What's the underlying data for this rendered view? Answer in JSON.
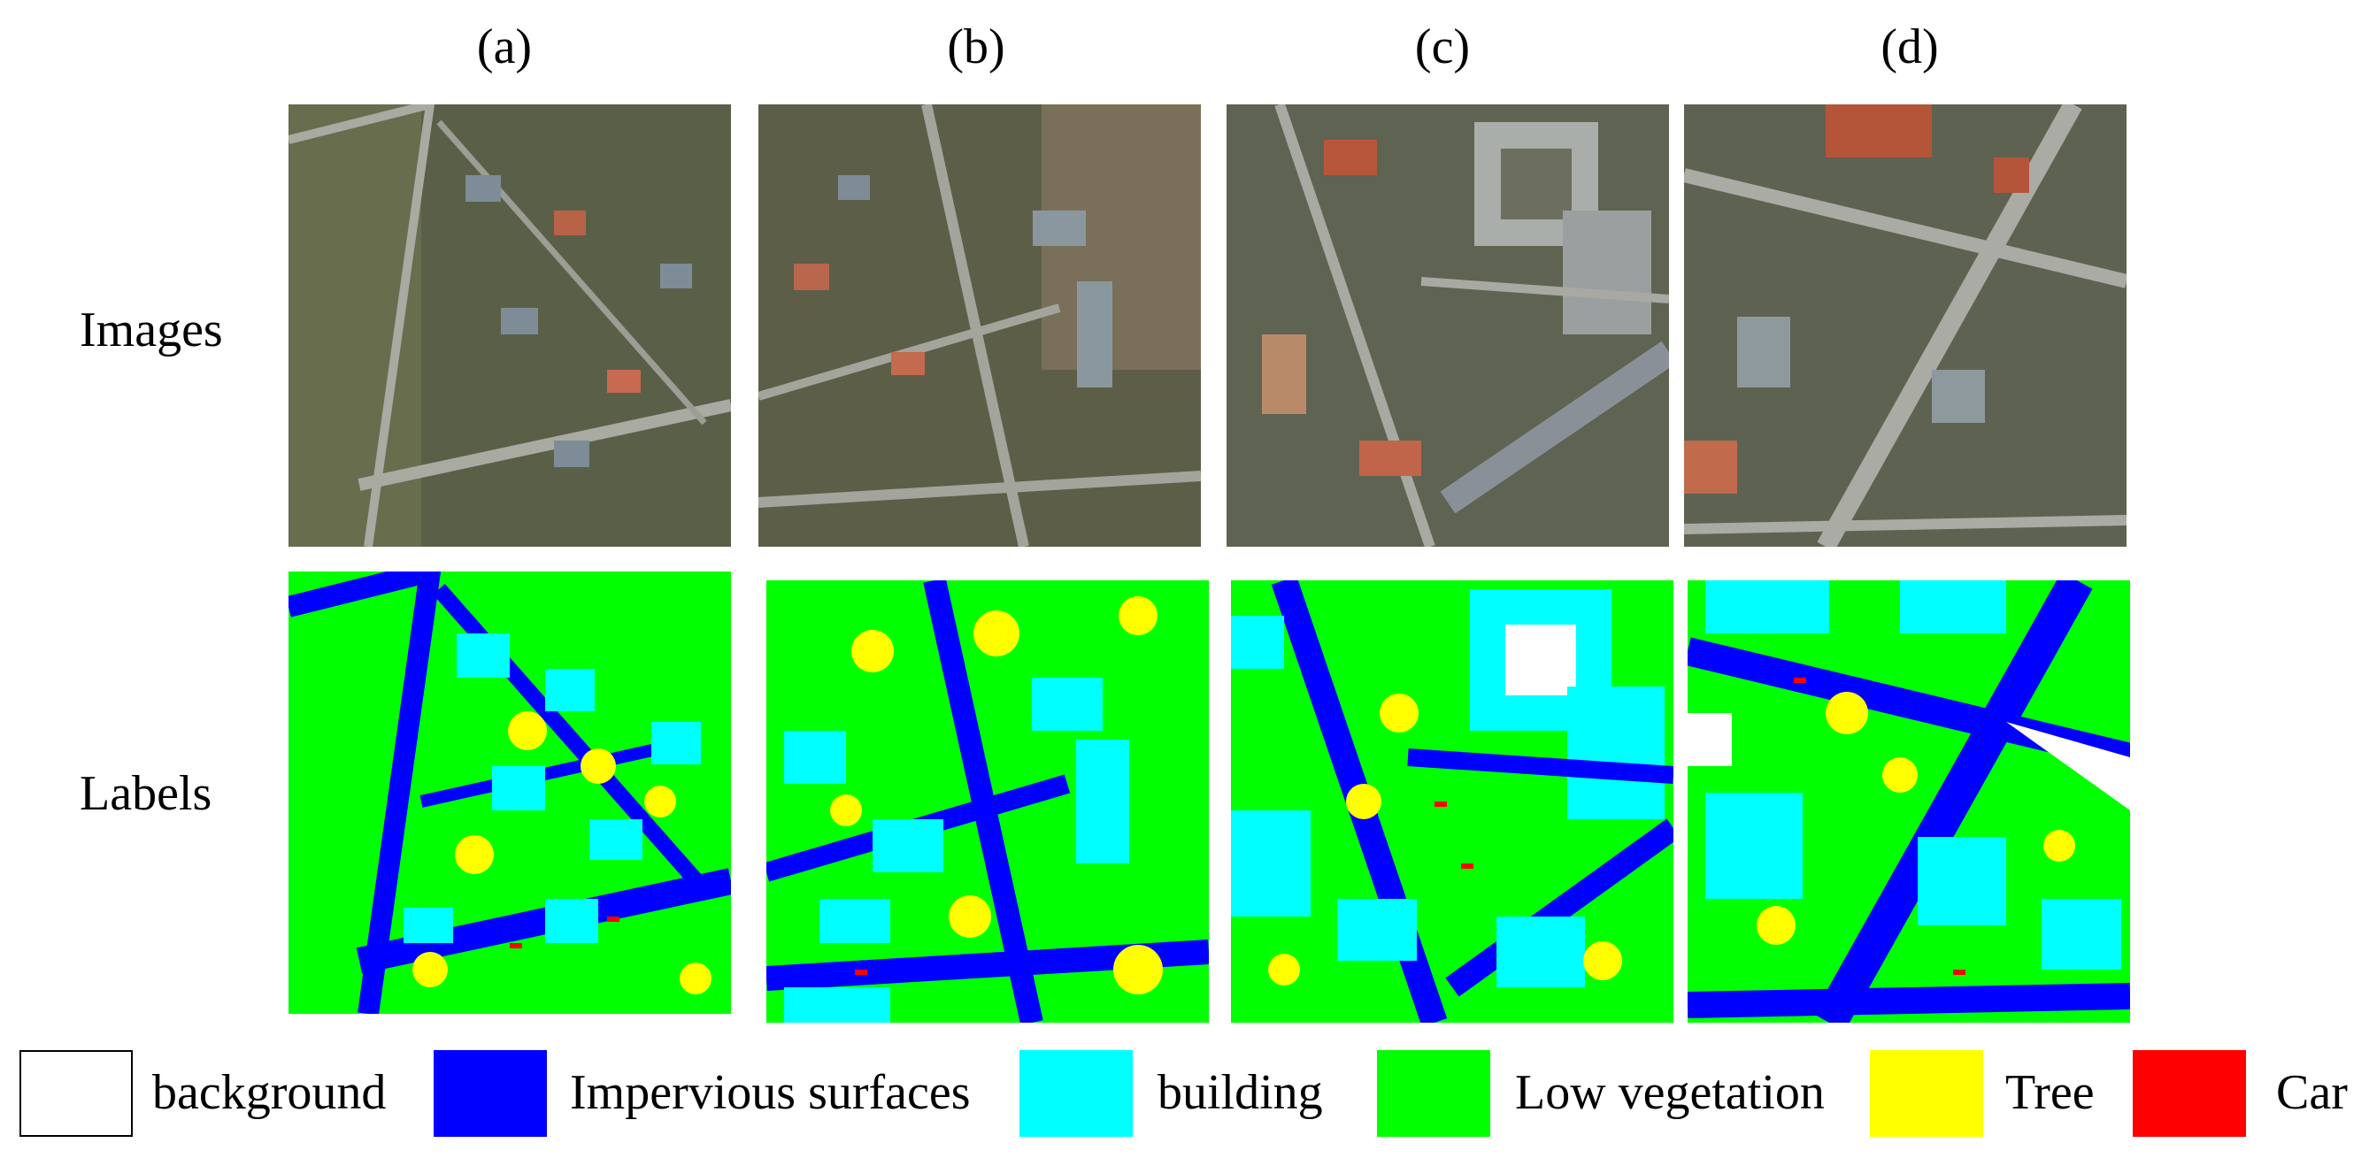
{
  "columns": [
    "(a)",
    "(b)",
    "(c)",
    "(d)"
  ],
  "rows": [
    "Images",
    "Labels"
  ],
  "legend": [
    {
      "label": "background",
      "color": "#ffffff"
    },
    {
      "label": "Impervious surfaces",
      "color": "#0000ff"
    },
    {
      "label": "building",
      "color": "#00ffff"
    },
    {
      "label": "Low vegetation",
      "color": "#00ff00"
    },
    {
      "label": "Tree",
      "color": "#ffff00"
    },
    {
      "label": "Car",
      "color": "#ff0000"
    }
  ]
}
